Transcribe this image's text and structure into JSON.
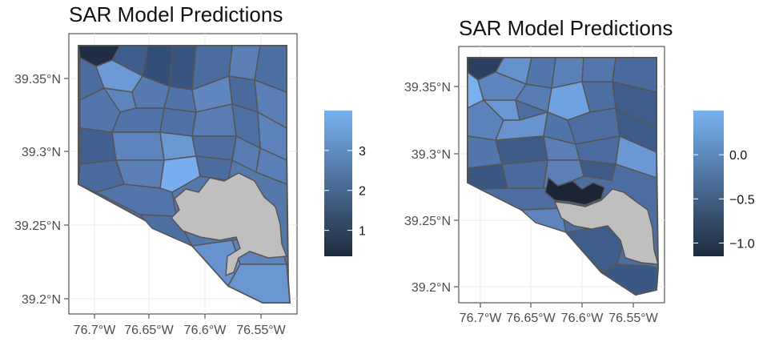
{
  "figure_left": {
    "title": "SAR Model Predictions",
    "x_ticks": [
      "76.7°W",
      "76.65°W",
      "76.6°W",
      "76.55°W"
    ],
    "y_ticks": [
      "39.35°N",
      "39.3°N",
      "39.25°N",
      "39.2°N"
    ],
    "legend": {
      "labels": [
        "3",
        "2",
        "1"
      ],
      "values": [
        3,
        2,
        1
      ],
      "range": [
        0.35,
        4.0
      ],
      "low_color": "#1e2b3d",
      "high_color": "#78b2f2"
    }
  },
  "figure_right": {
    "title": "SAR Model Predictions",
    "x_ticks": [
      "76.7°W",
      "76.65°W",
      "76.6°W",
      "76.55°W"
    ],
    "y_ticks": [
      "39.35°N",
      "39.3°N",
      "39.25°N",
      "39.2°N"
    ],
    "legend": {
      "labels": [
        "0.0",
        "−0.5",
        "−1.0"
      ],
      "values": [
        0.0,
        -0.5,
        -1.0
      ],
      "range": [
        -1.15,
        0.5
      ],
      "low_color": "#1e2b3d",
      "high_color": "#78b2f2"
    }
  },
  "colors": {
    "water": "#bfbfbf",
    "border": "#555555",
    "grid": "#ebebeb"
  }
}
